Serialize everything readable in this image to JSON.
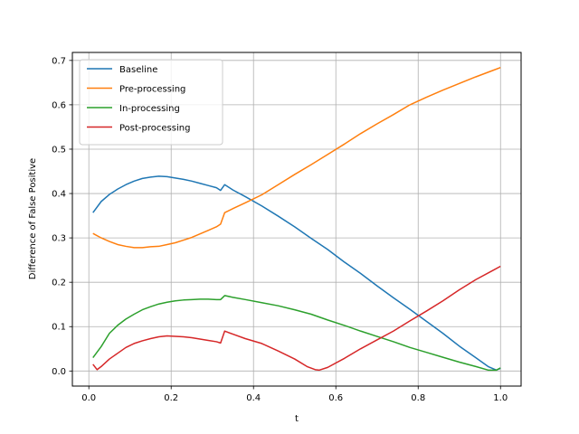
{
  "chart_data": {
    "type": "line",
    "xlabel": "t",
    "ylabel": "Difference of False Positive",
    "xlim": [
      -0.04,
      1.05
    ],
    "ylim": [
      -0.034,
      0.718
    ],
    "grid": true,
    "legend_position": "upper left",
    "x_ticks": [
      0.0,
      0.2,
      0.4,
      0.6,
      0.8,
      1.0
    ],
    "x_tick_labels": [
      "0.0",
      "0.2",
      "0.4",
      "0.6",
      "0.8",
      "1.0"
    ],
    "y_ticks": [
      0.0,
      0.1,
      0.2,
      0.3,
      0.4,
      0.5,
      0.6,
      0.7
    ],
    "y_tick_labels": [
      "0.0",
      "0.1",
      "0.2",
      "0.3",
      "0.4",
      "0.5",
      "0.6",
      "0.7"
    ],
    "series": [
      {
        "name": "Baseline",
        "color": "#1f77b4",
        "x": [
          0.01,
          0.03,
          0.05,
          0.07,
          0.09,
          0.11,
          0.13,
          0.15,
          0.17,
          0.19,
          0.21,
          0.23,
          0.25,
          0.27,
          0.29,
          0.31,
          0.32,
          0.33,
          0.35,
          0.38,
          0.42,
          0.46,
          0.5,
          0.54,
          0.58,
          0.62,
          0.66,
          0.7,
          0.74,
          0.78,
          0.82,
          0.86,
          0.9,
          0.94,
          0.97,
          0.99,
          1.0
        ],
        "y": [
          0.357,
          0.382,
          0.398,
          0.41,
          0.42,
          0.428,
          0.434,
          0.437,
          0.439,
          0.438,
          0.435,
          0.432,
          0.428,
          0.423,
          0.418,
          0.413,
          0.407,
          0.42,
          0.408,
          0.393,
          0.372,
          0.349,
          0.325,
          0.299,
          0.274,
          0.246,
          0.22,
          0.192,
          0.165,
          0.139,
          0.112,
          0.085,
          0.056,
          0.03,
          0.01,
          0.002,
          0.006
        ]
      },
      {
        "name": "Pre-processing",
        "color": "#ff7f0e",
        "x": [
          0.01,
          0.03,
          0.05,
          0.07,
          0.09,
          0.11,
          0.13,
          0.15,
          0.17,
          0.19,
          0.21,
          0.23,
          0.25,
          0.27,
          0.29,
          0.31,
          0.32,
          0.33,
          0.35,
          0.38,
          0.42,
          0.46,
          0.5,
          0.54,
          0.58,
          0.62,
          0.66,
          0.7,
          0.74,
          0.78,
          0.82,
          0.86,
          0.9,
          0.94,
          0.98,
          1.0
        ],
        "y": [
          0.31,
          0.3,
          0.292,
          0.285,
          0.281,
          0.278,
          0.278,
          0.28,
          0.281,
          0.285,
          0.289,
          0.295,
          0.301,
          0.309,
          0.317,
          0.325,
          0.331,
          0.357,
          0.366,
          0.379,
          0.397,
          0.42,
          0.443,
          0.465,
          0.488,
          0.511,
          0.535,
          0.557,
          0.578,
          0.6,
          0.617,
          0.633,
          0.648,
          0.663,
          0.677,
          0.684
        ]
      },
      {
        "name": "In-processing",
        "color": "#2ca02c",
        "x": [
          0.01,
          0.03,
          0.05,
          0.07,
          0.09,
          0.11,
          0.13,
          0.15,
          0.17,
          0.19,
          0.21,
          0.23,
          0.25,
          0.27,
          0.29,
          0.31,
          0.32,
          0.33,
          0.35,
          0.38,
          0.42,
          0.46,
          0.5,
          0.54,
          0.58,
          0.62,
          0.66,
          0.7,
          0.74,
          0.78,
          0.82,
          0.86,
          0.9,
          0.94,
          0.97,
          0.99,
          1.0
        ],
        "y": [
          0.03,
          0.055,
          0.085,
          0.103,
          0.117,
          0.128,
          0.138,
          0.145,
          0.151,
          0.155,
          0.158,
          0.16,
          0.161,
          0.162,
          0.162,
          0.161,
          0.161,
          0.17,
          0.166,
          0.161,
          0.154,
          0.147,
          0.138,
          0.128,
          0.115,
          0.103,
          0.09,
          0.078,
          0.066,
          0.053,
          0.042,
          0.031,
          0.02,
          0.01,
          0.002,
          0.002,
          0.007
        ]
      },
      {
        "name": "Post-processing",
        "color": "#d62728",
        "x": [
          0.01,
          0.02,
          0.03,
          0.05,
          0.07,
          0.09,
          0.11,
          0.13,
          0.15,
          0.17,
          0.19,
          0.21,
          0.23,
          0.25,
          0.27,
          0.29,
          0.31,
          0.32,
          0.33,
          0.35,
          0.38,
          0.42,
          0.46,
          0.5,
          0.53,
          0.55,
          0.56,
          0.58,
          0.62,
          0.66,
          0.7,
          0.74,
          0.78,
          0.82,
          0.86,
          0.9,
          0.94,
          0.98,
          1.0
        ],
        "y": [
          0.015,
          0.003,
          0.01,
          0.027,
          0.04,
          0.053,
          0.062,
          0.068,
          0.073,
          0.077,
          0.079,
          0.078,
          0.077,
          0.075,
          0.072,
          0.069,
          0.066,
          0.063,
          0.09,
          0.083,
          0.073,
          0.062,
          0.045,
          0.027,
          0.01,
          0.003,
          0.002,
          0.008,
          0.028,
          0.05,
          0.07,
          0.09,
          0.113,
          0.135,
          0.158,
          0.183,
          0.206,
          0.226,
          0.236
        ]
      }
    ]
  }
}
